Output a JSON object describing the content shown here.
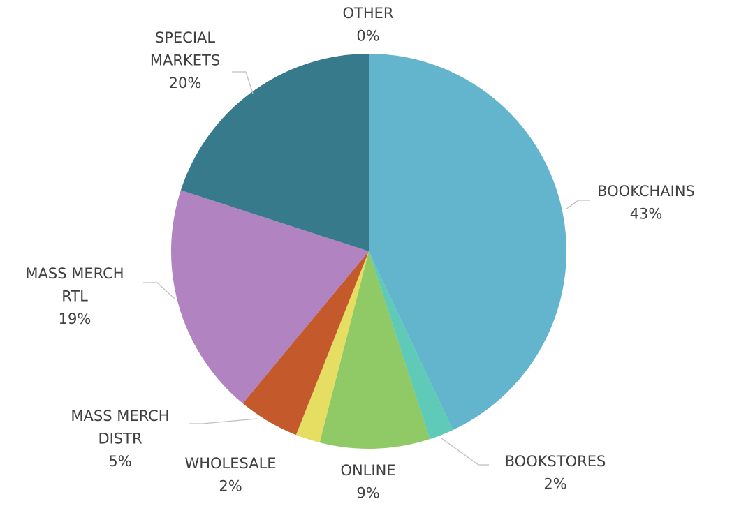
{
  "chart_data": {
    "type": "pie",
    "categories": [
      "BOOKCHAINS",
      "BOOKSTORES",
      "ONLINE",
      "WHOLESALE",
      "MASS MERCH DISTR",
      "MASS MERCH RTL",
      "SPECIAL MARKETS",
      "OTHER"
    ],
    "values": [
      43,
      2,
      9,
      2,
      5,
      19,
      20,
      0
    ],
    "value_labels": [
      "43%",
      "2%",
      "9%",
      "2%",
      "5%",
      "19%",
      "20%",
      "0%"
    ],
    "colors": [
      "#62b5cc",
      "#5fcab8",
      "#8fca67",
      "#e6dd63",
      "#c45a2b",
      "#b183c0",
      "#377a8b",
      "#2f8a5e"
    ]
  }
}
